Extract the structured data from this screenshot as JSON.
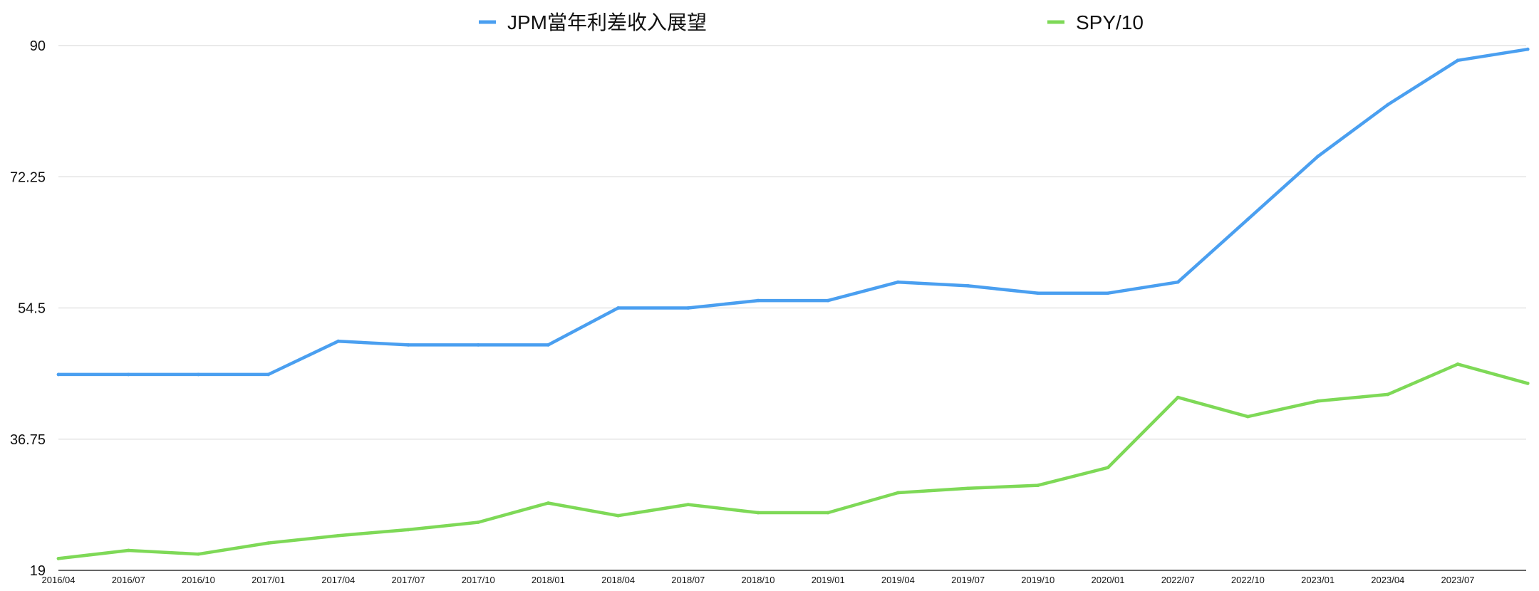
{
  "chart_data": {
    "type": "line",
    "title": "",
    "xlabel": "",
    "ylabel": "",
    "ylim": [
      19,
      90
    ],
    "yticks": [
      "90",
      "72.25",
      "54.5",
      "36.75",
      "19"
    ],
    "grid": true,
    "legend_position": "top",
    "categories": [
      "2016/04",
      "2016/07",
      "2016/10",
      "2017/01",
      "2017/04",
      "2017/07",
      "2017/10",
      "2018/01",
      "2018/04",
      "2018/07",
      "2018/10",
      "2019/01",
      "2019/04",
      "2019/07",
      "2019/10",
      "2020/01",
      "2022/07",
      "2022/10",
      "2023/01",
      "2023/04",
      "2023/07",
      ""
    ],
    "series": [
      {
        "name": "JPM當年利差收入展望",
        "color": "#4a9ff0",
        "values": [
          45.5,
          45.5,
          45.5,
          45.5,
          50,
          49.5,
          49.5,
          49.5,
          54.5,
          54.5,
          55.5,
          55.5,
          58,
          57.5,
          56.5,
          56.5,
          58,
          66.5,
          75,
          82,
          88,
          89.5
        ]
      },
      {
        "name": "SPY/10",
        "color": "#7ed957",
        "values": [
          20.6,
          21.7,
          21.2,
          22.7,
          23.7,
          24.5,
          25.5,
          28.1,
          26.4,
          27.9,
          26.8,
          26.8,
          29.5,
          30.1,
          30.5,
          32.9,
          42.4,
          39.8,
          41.9,
          42.8,
          46.9,
          44.3
        ]
      }
    ]
  }
}
